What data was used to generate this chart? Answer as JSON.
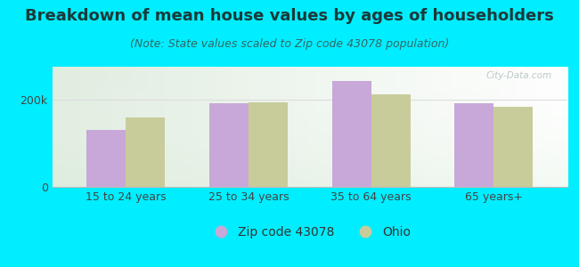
{
  "title": "Breakdown of mean house values by ages of householders",
  "subtitle": "(Note: State values scaled to Zip code 43078 population)",
  "categories": [
    "15 to 24 years",
    "25 to 34 years",
    "35 to 64 years",
    "65 years+"
  ],
  "zip_values": [
    130000,
    192000,
    242000,
    192000
  ],
  "ohio_values": [
    158000,
    194000,
    212000,
    184000
  ],
  "zip_color": "#c8a8d8",
  "ohio_color": "#c8cc9a",
  "background_color": "#00eeff",
  "zip_label": "Zip code 43078",
  "ohio_label": "Ohio",
  "ytick_labels": [
    "0",
    "200k"
  ],
  "ytick_values": [
    0,
    200000
  ],
  "ylim": [
    0,
    275000
  ],
  "bar_width": 0.32,
  "title_fontsize": 13,
  "subtitle_fontsize": 9,
  "tick_fontsize": 9,
  "legend_fontsize": 10
}
